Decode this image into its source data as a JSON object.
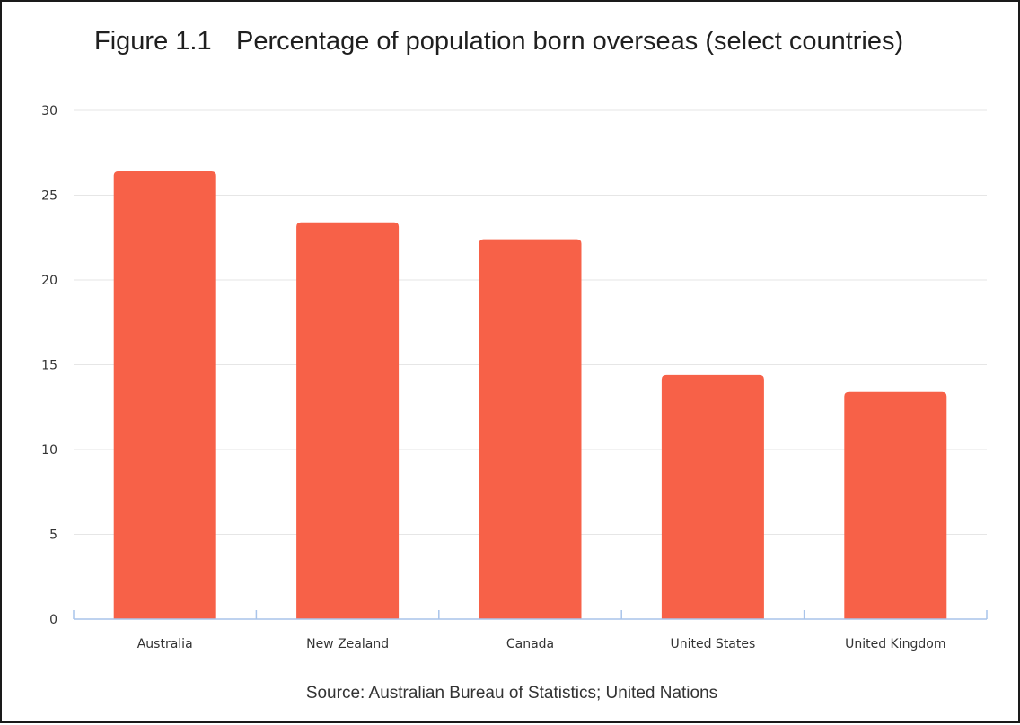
{
  "figure": {
    "number": "Figure 1.1",
    "title": "Percentage of population born overseas (select countries)",
    "source": "Source: Australian Bureau of Statistics; United Nations"
  },
  "colors": {
    "bar": "#f76148",
    "grid": "#e6e6e6",
    "axis": "#a9c4ea"
  },
  "chart_data": {
    "type": "bar",
    "categories": [
      "Australia",
      "New Zealand",
      "Canada",
      "United States",
      "United Kingdom"
    ],
    "values": [
      26.4,
      23.4,
      22.4,
      14.4,
      13.4
    ],
    "ylim": [
      0,
      30
    ],
    "yticks": [
      0,
      5,
      10,
      15,
      20,
      25,
      30
    ],
    "xlabel": "",
    "ylabel": "",
    "grid": true,
    "legend": "none"
  }
}
